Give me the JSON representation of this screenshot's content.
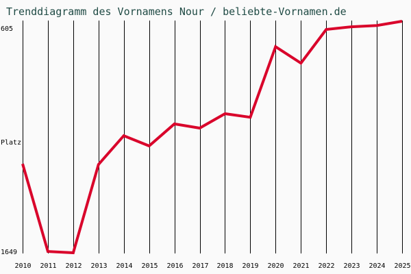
{
  "chart_data": {
    "type": "line",
    "title": "Trenddiagramm des Vornamens Nour / beliebte-Vornamen.de",
    "xlabel": "",
    "ylabel": "Platz",
    "y_inverted": true,
    "ylim": [
      605,
      1649
    ],
    "y_tick_labels": [
      "605",
      "1649"
    ],
    "grid": "vertical",
    "categories": [
      "2010",
      "2011",
      "2012",
      "2013",
      "2014",
      "2015",
      "2016",
      "2017",
      "2018",
      "2019",
      "2020",
      "2021",
      "2022",
      "2023",
      "2024",
      "2025"
    ],
    "series": [
      {
        "name": "Nour",
        "color": "#d9042b",
        "values": [
          1248,
          1643,
          1649,
          1251,
          1121,
          1167,
          1068,
          1087,
          1022,
          1038,
          720,
          794,
          642,
          630,
          624,
          605
        ]
      }
    ]
  },
  "labels": {
    "title": "Trenddiagramm des Vornamens Nour / beliebte-Vornamen.de",
    "y_top": "605",
    "y_bottom": "1649",
    "y_axis": "Platz"
  },
  "colors": {
    "line": "#d9042b",
    "title": "#1f4a44",
    "grid": "#000000",
    "background": "#fafafa"
  }
}
